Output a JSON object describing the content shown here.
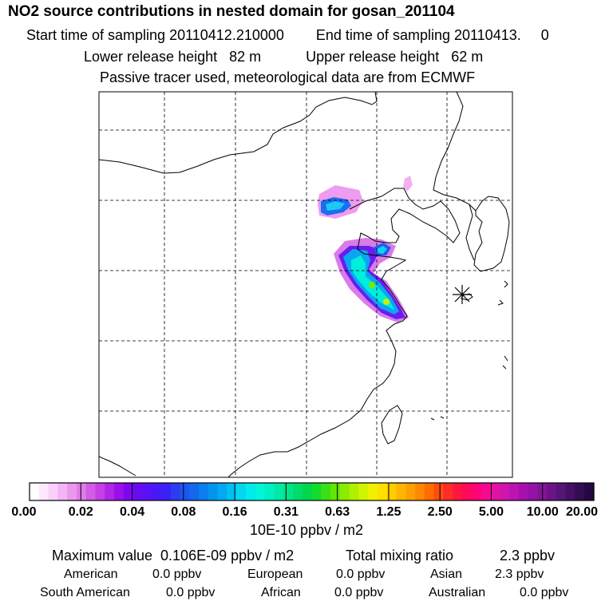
{
  "header": {
    "title": "NO2 source contributions in nested domain for gosan_201104",
    "start_label": "Start time of sampling 20110412.210000",
    "end_label": "End time of sampling 20110413.     0",
    "lower_label": "Lower release height   82 m",
    "upper_label": "Upper release height   62 m",
    "note": "Passive tracer used, meteorological data are from ECMWF"
  },
  "chart_data": {
    "type": "heatmap",
    "title": "NO2 source contributions in nested domain for gosan_201104",
    "units": "10E-10 ppbv / m2",
    "scale_ticks": [
      "0.00",
      "0.02",
      "0.04",
      "0.08",
      "0.16",
      "0.31",
      "0.63",
      "1.25",
      "2.50",
      "5.00",
      "10.00",
      "20.00"
    ],
    "scale_colors": [
      "#ffffff",
      "#fde8fd",
      "#f9d0f9",
      "#f3b4f3",
      "#ec97ee",
      "#e07be9",
      "#d35ce6",
      "#c340e4",
      "#b026e6",
      "#9a10ea",
      "#8006ef",
      "#6a0cf2",
      "#5a12f4",
      "#4a18f6",
      "#3c20f5",
      "#2d3bf2",
      "#1e55f0",
      "#1368ee",
      "#0a7fee",
      "#0295ef",
      "#00aaf0",
      "#00c0f2",
      "#00d8f0",
      "#00ecea",
      "#00f5da",
      "#00f0c2",
      "#00eaa6",
      "#00e48a",
      "#00dc6c",
      "#00d84c",
      "#12dc2e",
      "#3ae016",
      "#62e606",
      "#8aec00",
      "#b0f000",
      "#d2f400",
      "#f0f000",
      "#ffe000",
      "#ffcc00",
      "#ffb600",
      "#ffa000",
      "#ff8800",
      "#ff6c00",
      "#ff4c10",
      "#ff2c28",
      "#ff1640",
      "#ff0a5a",
      "#ff0476",
      "#f80892",
      "#e410a4",
      "#d014ae",
      "#bc14b2",
      "#a810ae",
      "#9412a6",
      "#801498",
      "#6a1488",
      "#561476",
      "#441064",
      "#340c52",
      "#260840"
    ],
    "grid": true,
    "marker": "gosan receptor (asterisk)"
  },
  "stats": {
    "max_label": "Maximum value  0.106E-09 ppbv / m2",
    "total_label": "Total mixing ratio",
    "total_value": "2.3 ppbv",
    "american_label": "American",
    "american_value": "0.0 ppbv",
    "european_label": "European",
    "european_value": "0.0 ppbv",
    "asian_label": "Asian",
    "asian_value": "2.3 ppbv",
    "south_american_label": "South American",
    "south_american_value": "0.0 ppbv",
    "african_label": "African",
    "african_value": "0.0 ppbv",
    "australian_label": "Australian",
    "australian_value": "0.0 ppbv"
  }
}
